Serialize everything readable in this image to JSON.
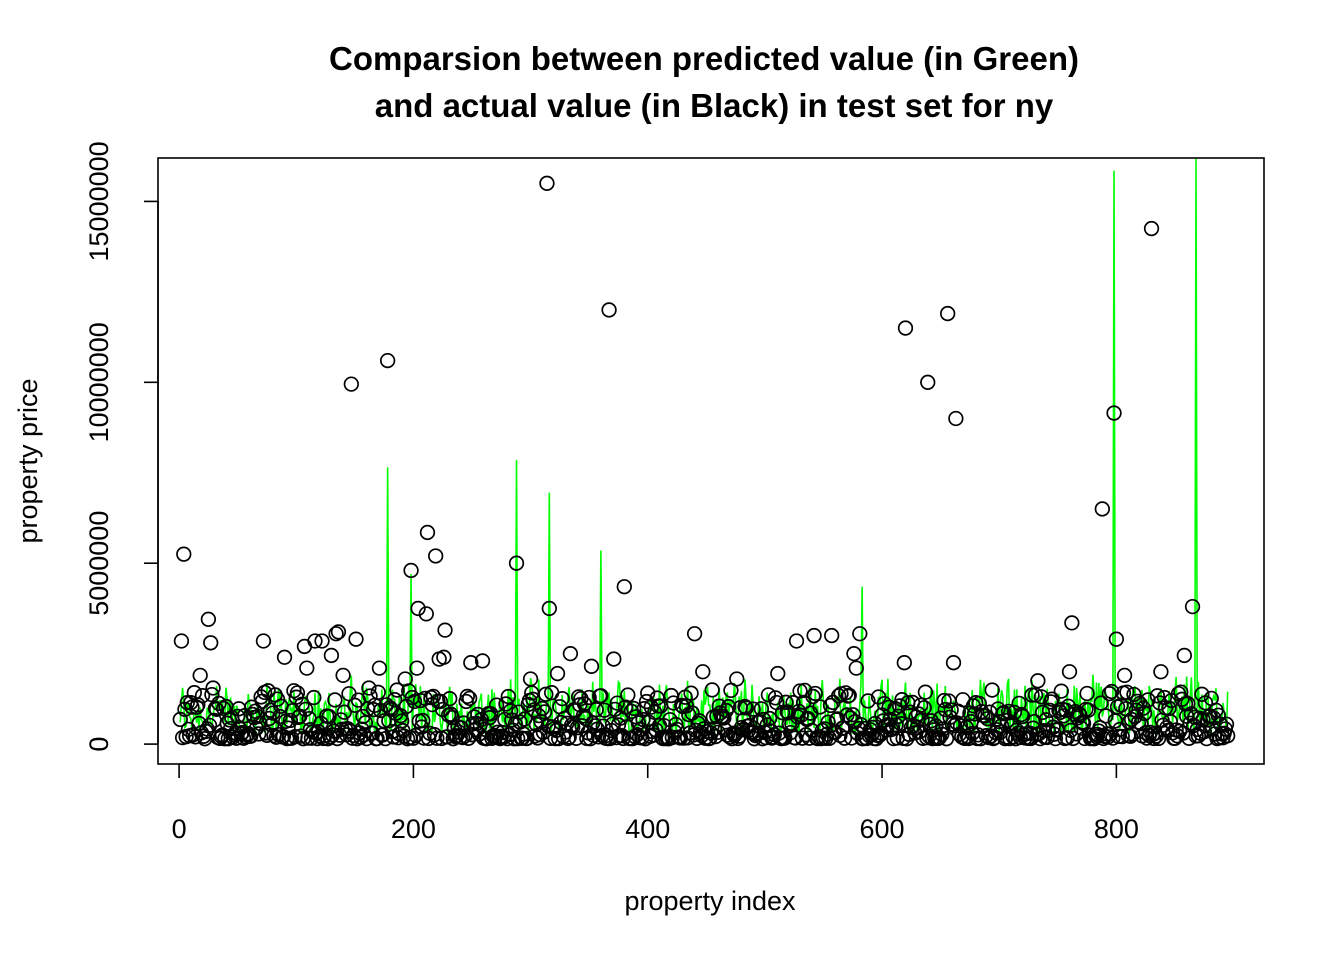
{
  "chart_data": {
    "type": "scatter",
    "title_lines": [
      "Comparsion between predicted value (in Green)",
      "and actual value (in Black) in test set for ny"
    ],
    "xlabel": "property index",
    "ylabel": "property price",
    "xlim": [
      -18,
      926
    ],
    "ylim": [
      -550000,
      16200000
    ],
    "x_ticks": [
      0,
      200,
      400,
      600,
      800
    ],
    "x_tick_labels": [
      "0",
      "200",
      "400",
      "600",
      "800"
    ],
    "y_ticks": [
      0,
      5000000,
      10000000,
      15000000
    ],
    "y_tick_labels": [
      "0",
      "5000000",
      "10000000",
      "15000000"
    ],
    "n_points": 895,
    "colors": {
      "actual": "#000000",
      "predicted": "#00ff00"
    },
    "actual_highlights": [
      {
        "x": 2,
        "y": 2850000
      },
      {
        "x": 4,
        "y": 5250000
      },
      {
        "x": 18,
        "y": 1900000
      },
      {
        "x": 25,
        "y": 3450000
      },
      {
        "x": 27,
        "y": 2800000
      },
      {
        "x": 29,
        "y": 1550000
      },
      {
        "x": 72,
        "y": 2850000
      },
      {
        "x": 90,
        "y": 2400000
      },
      {
        "x": 107,
        "y": 2700000
      },
      {
        "x": 109,
        "y": 2100000
      },
      {
        "x": 116,
        "y": 2850000
      },
      {
        "x": 122,
        "y": 2850000
      },
      {
        "x": 130,
        "y": 2450000
      },
      {
        "x": 134,
        "y": 3050000
      },
      {
        "x": 136,
        "y": 3100000
      },
      {
        "x": 140,
        "y": 1900000
      },
      {
        "x": 147,
        "y": 9950000
      },
      {
        "x": 151,
        "y": 2900000
      },
      {
        "x": 162,
        "y": 1550000
      },
      {
        "x": 171,
        "y": 2100000
      },
      {
        "x": 178,
        "y": 10600000
      },
      {
        "x": 193,
        "y": 1800000
      },
      {
        "x": 198,
        "y": 4800000
      },
      {
        "x": 203,
        "y": 2100000
      },
      {
        "x": 204,
        "y": 3750000
      },
      {
        "x": 211,
        "y": 3600000
      },
      {
        "x": 212,
        "y": 5850000
      },
      {
        "x": 219,
        "y": 5200000
      },
      {
        "x": 222,
        "y": 2350000
      },
      {
        "x": 226,
        "y": 2400000
      },
      {
        "x": 227,
        "y": 3150000
      },
      {
        "x": 249,
        "y": 2250000
      },
      {
        "x": 259,
        "y": 2300000
      },
      {
        "x": 288,
        "y": 5000000
      },
      {
        "x": 300,
        "y": 1800000
      },
      {
        "x": 314,
        "y": 15500000
      },
      {
        "x": 316,
        "y": 3750000
      },
      {
        "x": 323,
        "y": 1950000
      },
      {
        "x": 334,
        "y": 2500000
      },
      {
        "x": 352,
        "y": 2150000
      },
      {
        "x": 367,
        "y": 12000000
      },
      {
        "x": 371,
        "y": 2350000
      },
      {
        "x": 380,
        "y": 4350000
      },
      {
        "x": 440,
        "y": 3050000
      },
      {
        "x": 447,
        "y": 2000000
      },
      {
        "x": 476,
        "y": 1800000
      },
      {
        "x": 511,
        "y": 1950000
      },
      {
        "x": 527,
        "y": 2850000
      },
      {
        "x": 542,
        "y": 3000000
      },
      {
        "x": 557,
        "y": 3000000
      },
      {
        "x": 576,
        "y": 2500000
      },
      {
        "x": 578,
        "y": 2100000
      },
      {
        "x": 581,
        "y": 3050000
      },
      {
        "x": 620,
        "y": 11500000
      },
      {
        "x": 619,
        "y": 2250000
      },
      {
        "x": 639,
        "y": 10000000
      },
      {
        "x": 656,
        "y": 11900000
      },
      {
        "x": 661,
        "y": 2250000
      },
      {
        "x": 663,
        "y": 9000000
      },
      {
        "x": 733,
        "y": 1750000
      },
      {
        "x": 760,
        "y": 2000000
      },
      {
        "x": 762,
        "y": 3350000
      },
      {
        "x": 788,
        "y": 6500000
      },
      {
        "x": 798,
        "y": 9150000
      },
      {
        "x": 800,
        "y": 2900000
      },
      {
        "x": 807,
        "y": 1900000
      },
      {
        "x": 830,
        "y": 14250000
      },
      {
        "x": 838,
        "y": 2000000
      },
      {
        "x": 858,
        "y": 2450000
      },
      {
        "x": 865,
        "y": 3800000
      }
    ],
    "predicted_spikes": [
      {
        "x": 178,
        "y": 7650000
      },
      {
        "x": 198,
        "y": 4700000
      },
      {
        "x": 288,
        "y": 7850000
      },
      {
        "x": 316,
        "y": 6950000
      },
      {
        "x": 360,
        "y": 5350000
      },
      {
        "x": 583,
        "y": 4350000
      },
      {
        "x": 798,
        "y": 15850000
      },
      {
        "x": 868,
        "y": 16200000
      }
    ],
    "baseline": {
      "actual_range": [
        150000,
        1500000
      ],
      "predicted_range": [
        300000,
        2000000
      ]
    }
  }
}
